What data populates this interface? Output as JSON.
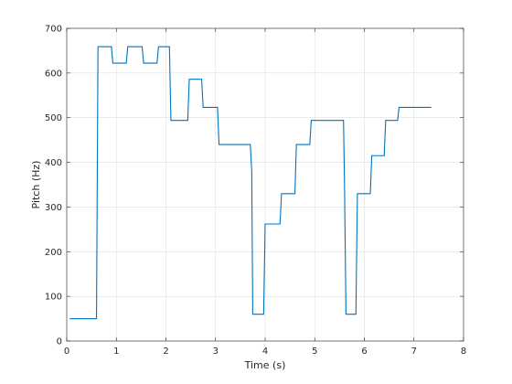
{
  "chart_data": {
    "type": "line",
    "title": "",
    "xlabel": "Time (s)",
    "ylabel": "Pitch (Hz)",
    "xlim": [
      0,
      8
    ],
    "ylim": [
      0,
      700
    ],
    "xticks": [
      0,
      1,
      2,
      3,
      4,
      5,
      6,
      7,
      8
    ],
    "yticks": [
      0,
      100,
      200,
      300,
      400,
      500,
      600,
      700
    ],
    "grid": true,
    "legend": "none",
    "series": [
      {
        "color": "#0072BD",
        "x": [
          0.06,
          0.6,
          0.63,
          0.9,
          0.93,
          1.2,
          1.23,
          1.52,
          1.55,
          1.82,
          1.85,
          2.07,
          2.1,
          2.44,
          2.47,
          2.72,
          2.75,
          3.04,
          3.07,
          3.7,
          3.73,
          3.75,
          3.78,
          3.97,
          4.0,
          4.3,
          4.33,
          4.6,
          4.63,
          4.9,
          4.93,
          5.58,
          5.6,
          5.63,
          5.83,
          5.86,
          6.12,
          6.15,
          6.4,
          6.43,
          6.67,
          6.7,
          7.35
        ],
        "y": [
          50,
          50,
          659,
          659,
          622,
          622,
          659,
          659,
          622,
          622,
          659,
          659,
          494,
          494,
          586,
          586,
          523,
          523,
          440,
          440,
          380,
          60,
          60,
          60,
          262,
          262,
          330,
          330,
          440,
          440,
          494,
          494,
          350,
          60,
          60,
          330,
          330,
          415,
          415,
          494,
          494,
          523,
          523
        ]
      }
    ]
  }
}
